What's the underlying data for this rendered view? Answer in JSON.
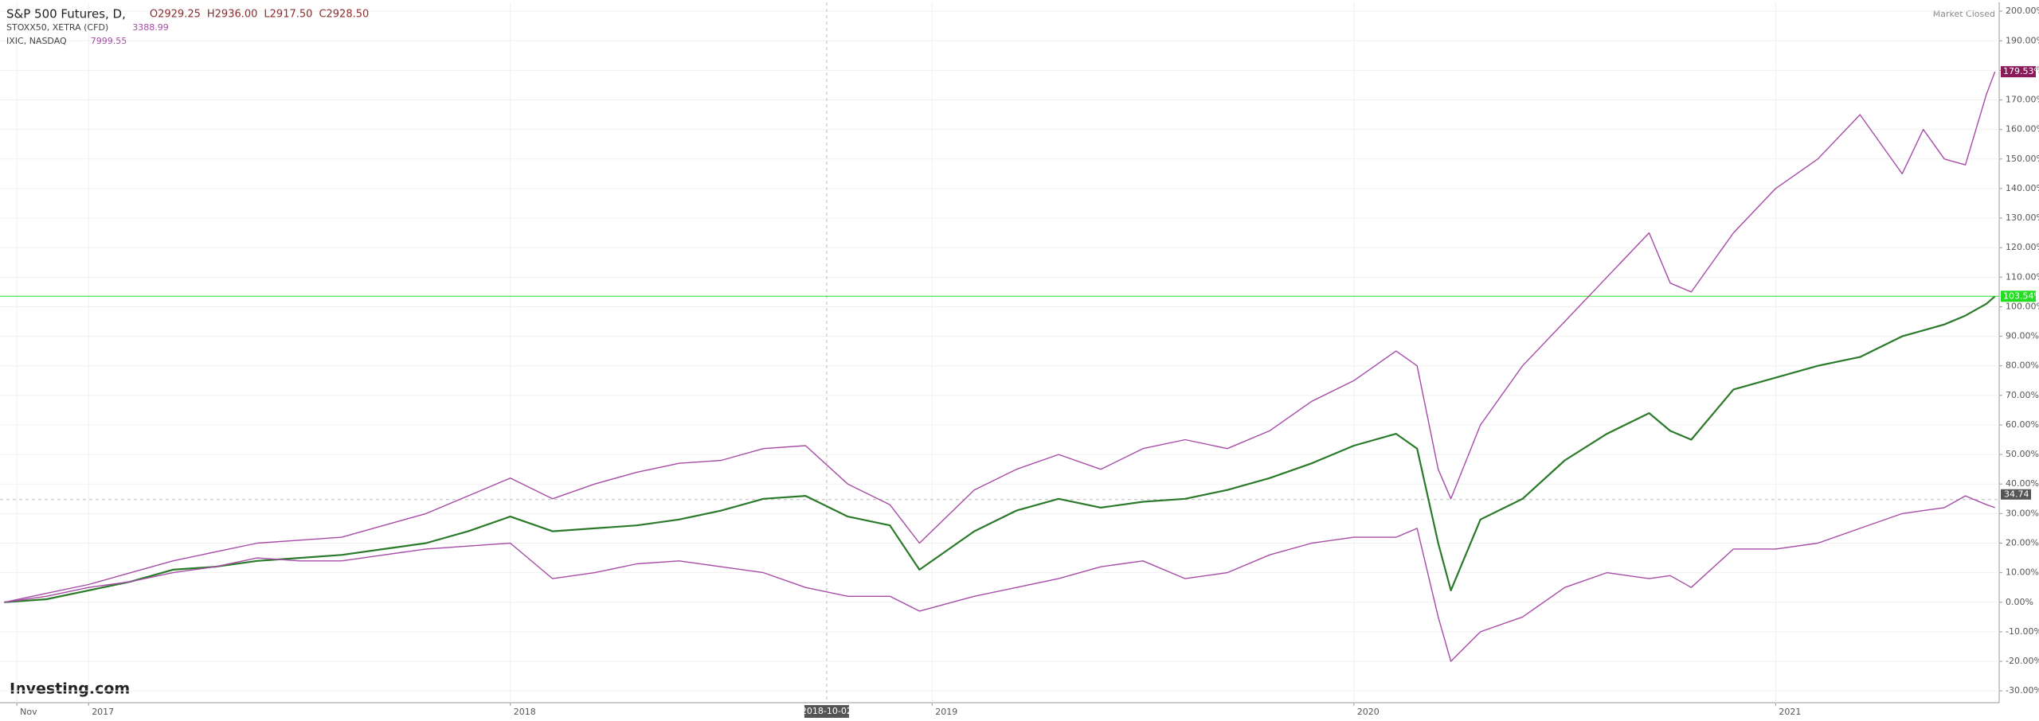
{
  "chart_data": {
    "type": "line",
    "market_status": "Market Closed",
    "brand": "Investing.com",
    "x": [
      2016.8,
      2016.9,
      2017.0,
      2017.1,
      2017.2,
      2017.3,
      2017.4,
      2017.5,
      2017.6,
      2017.7,
      2017.8,
      2017.9,
      2018.0,
      2018.1,
      2018.2,
      2018.3,
      2018.4,
      2018.5,
      2018.6,
      2018.7,
      2018.8,
      2018.9,
      2018.97,
      2019.1,
      2019.2,
      2019.3,
      2019.4,
      2019.5,
      2019.6,
      2019.7,
      2019.8,
      2019.9,
      2020.0,
      2020.1,
      2020.15,
      2020.2,
      2020.23,
      2020.3,
      2020.4,
      2020.5,
      2020.6,
      2020.7,
      2020.75,
      2020.8,
      2020.9,
      2021.0,
      2021.1,
      2021.2,
      2021.3,
      2021.35,
      2021.4,
      2021.45,
      2021.5,
      2021.52
    ],
    "series": [
      {
        "name": "S&P 500 Futures, D,",
        "color": "#2a7a2a",
        "label_color": "#22dd22",
        "quote": [
          {
            "value": 2929.25,
            "label": "O2929.25"
          },
          {
            "value": 2936.0,
            "label": "H2936.00"
          },
          {
            "value": 2917.5,
            "label": "L2917.50"
          },
          {
            "value": 2928.5,
            "label": "C2928.50"
          }
        ],
        "values": [
          0,
          1,
          4,
          7,
          11,
          12,
          14,
          15,
          16,
          18,
          20,
          24,
          29,
          24,
          25,
          26,
          28,
          31,
          35,
          36,
          29,
          26,
          11,
          24,
          31,
          35,
          32,
          34,
          35,
          38,
          42,
          47,
          53,
          57,
          52,
          20,
          4,
          28,
          35,
          48,
          57,
          64,
          58,
          55,
          72,
          76,
          80,
          83,
          90,
          92,
          94,
          97,
          101,
          103.54
        ],
        "end_label": "103.54%"
      },
      {
        "name": "STOXX50, XETRA (CFD)",
        "color": "#a64ca6",
        "quote": [
          3388.99
        ],
        "values": [
          0,
          2,
          5,
          7,
          10,
          12,
          15,
          14,
          14,
          16,
          18,
          19,
          20,
          8,
          10,
          13,
          14,
          12,
          10,
          5,
          2,
          2,
          -3,
          2,
          5,
          8,
          12,
          14,
          8,
          10,
          16,
          20,
          22,
          22,
          25,
          -5,
          -20,
          -10,
          -5,
          5,
          10,
          8,
          9,
          5,
          18,
          18,
          20,
          25,
          30,
          31,
          32,
          36,
          33,
          32
        ]
      },
      {
        "name": "IXIC, NASDAQ",
        "color": "#a64ca6",
        "label_color": "#8b1a5a",
        "quote": [
          7999.55
        ],
        "values": [
          0,
          3,
          6,
          10,
          14,
          17,
          20,
          21,
          22,
          26,
          30,
          36,
          42,
          35,
          40,
          44,
          47,
          48,
          52,
          53,
          40,
          33,
          20,
          38,
          45,
          50,
          45,
          52,
          55,
          52,
          58,
          68,
          75,
          85,
          80,
          45,
          35,
          60,
          80,
          95,
          110,
          125,
          108,
          105,
          125,
          140,
          150,
          165,
          145,
          160,
          150,
          148,
          172,
          179.53
        ],
        "end_label": "179.53%"
      }
    ],
    "crosshair": {
      "x": {
        "value": 2018.75,
        "label": "2018-10-02"
      },
      "y": 34.74
    },
    "xlim": [
      2016.79,
      2021.53
    ],
    "xticks": [
      {
        "value": 2016.83,
        "label": "Nov"
      },
      2017,
      2018,
      2019,
      2020,
      2021
    ],
    "ylim": [
      -34,
      203
    ],
    "yticks": [
      {
        "value": -30,
        "label": "-30.00%"
      },
      {
        "value": -20,
        "label": "-20.00%"
      },
      {
        "value": -10,
        "label": "-10.00%"
      },
      {
        "value": 0,
        "label": "0.00%"
      },
      {
        "value": 10,
        "label": "10.00%"
      },
      {
        "value": 20,
        "label": "20.00%"
      },
      {
        "value": 30,
        "label": "30.00%"
      },
      {
        "value": 40,
        "label": "40.00%"
      },
      {
        "value": 50,
        "label": "50.00%"
      },
      {
        "value": 60,
        "label": "60.00%"
      },
      {
        "value": 70,
        "label": "70.00%"
      },
      {
        "value": 80,
        "label": "80.00%"
      },
      {
        "value": 90,
        "label": "90.00%"
      },
      {
        "value": 100,
        "label": "100.00%"
      },
      {
        "value": 110,
        "label": "110.00%"
      },
      {
        "value": 120,
        "label": "120.00%"
      },
      {
        "value": 130,
        "label": "130.00%"
      },
      {
        "value": 140,
        "label": "140.00%"
      },
      {
        "value": 150,
        "label": "150.00%"
      },
      {
        "value": 160,
        "label": "160.00%"
      },
      {
        "value": 170,
        "label": "170.00%"
      },
      {
        "value": 180,
        "label": "180.00%"
      },
      {
        "value": 190,
        "label": "190.00%"
      },
      {
        "value": 200,
        "label": "200.00%"
      }
    ],
    "grid": true
  }
}
